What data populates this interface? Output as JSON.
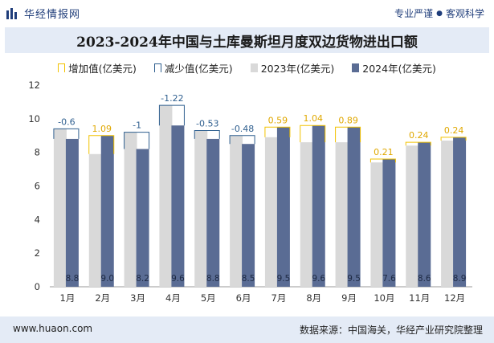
{
  "header": {
    "brand": "华经情报网",
    "tagline_left": "专业严谨",
    "tagline_right": "客观科学"
  },
  "footer": {
    "website": "www.huaon.com",
    "source": "数据来源：中国海关，华经产业研究院整理"
  },
  "colors": {
    "bar_2023": "#d9d9d9",
    "bar_2024": "#5a6c94",
    "increase": "#f2c200",
    "decrease": "#2f5f8f",
    "header_band": "#e4ebf6"
  },
  "chart_data": {
    "type": "bar",
    "title": "2023-2024年中国与土库曼斯坦月度双边货物进出口额",
    "legend": [
      "增加值(亿美元)",
      "减少值(亿美元)",
      "2023年(亿美元)",
      "2024年(亿美元)"
    ],
    "legend_position": "top",
    "categories": [
      "1月",
      "2月",
      "3月",
      "4月",
      "5月",
      "6月",
      "7月",
      "8月",
      "9月",
      "10月",
      "11月",
      "12月"
    ],
    "series": [
      {
        "name": "2023年(亿美元)",
        "values": [
          9.4,
          7.9,
          9.2,
          10.8,
          9.3,
          9.0,
          8.9,
          8.6,
          8.6,
          7.4,
          8.4,
          8.7
        ]
      },
      {
        "name": "2024年(亿美元)",
        "values": [
          8.8,
          9.0,
          8.2,
          9.6,
          8.8,
          8.5,
          9.5,
          9.6,
          9.5,
          7.6,
          8.6,
          8.9
        ]
      }
    ],
    "change": [
      -0.6,
      1.09,
      -1,
      -1.22,
      -0.53,
      -0.48,
      0.59,
      1.04,
      0.89,
      0.21,
      0.24,
      0.24
    ],
    "ylim": [
      0,
      12
    ],
    "yticks": [
      0,
      2,
      4,
      6,
      8,
      10,
      12
    ],
    "grid": false
  }
}
